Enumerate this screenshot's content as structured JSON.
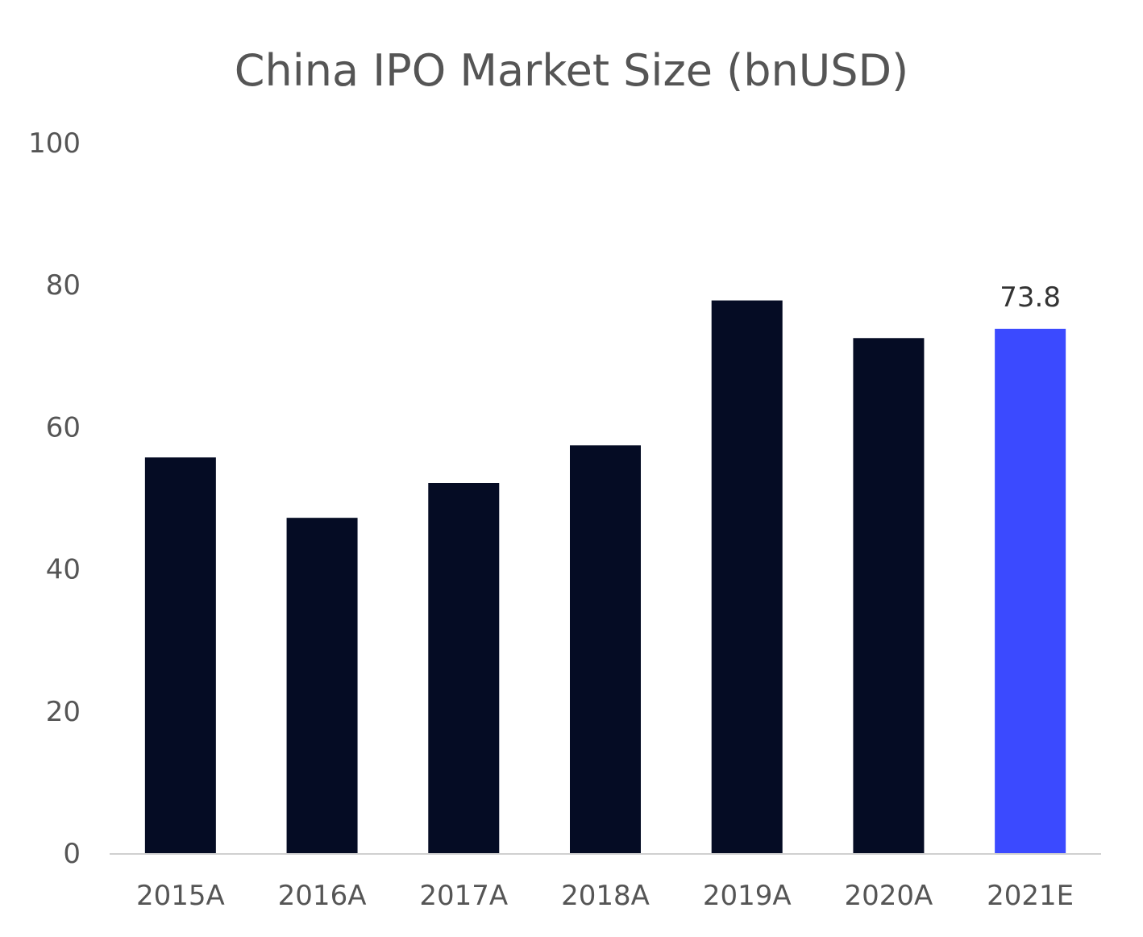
{
  "chart_data": {
    "type": "bar",
    "title": "China IPO Market Size (bnUSD)",
    "xlabel": "",
    "ylabel": "",
    "categories": [
      "2015A",
      "2016A",
      "2017A",
      "2018A",
      "2019A",
      "2020A",
      "2021E"
    ],
    "values": [
      55.7,
      47.2,
      52.1,
      57.4,
      77.8,
      72.5,
      73.8
    ],
    "yticks": [
      "0",
      "20",
      "40",
      "60",
      "80",
      "100"
    ],
    "ylim": [
      0,
      100
    ],
    "grid": false,
    "legend": "none",
    "data_labels": [
      {
        "index": 6,
        "text": "73.8"
      }
    ],
    "colors": {
      "bar": "#050c24",
      "highlight": "#3b4aff",
      "axis": "#d0d0d0",
      "text": "#555555"
    },
    "highlight_index": 6
  }
}
